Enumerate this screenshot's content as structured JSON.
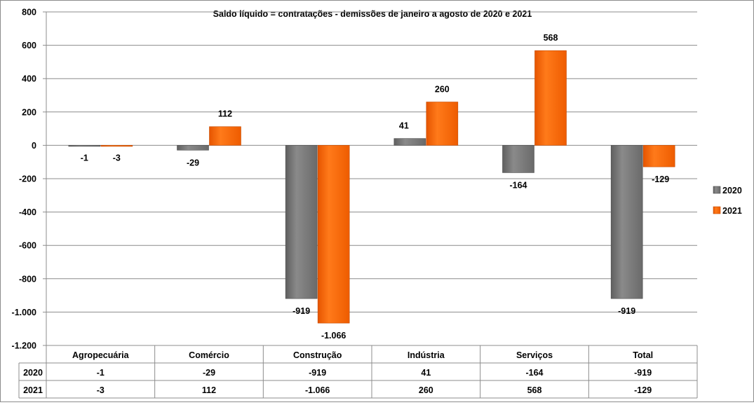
{
  "chart_data": {
    "type": "bar",
    "title": "Saldo líquido = contratações - demissões de janeiro a agosto  de 2020 e 2021",
    "categories": [
      "Agropecuária",
      "Comércio",
      "Construção",
      "Indústria",
      "Serviços",
      "Total"
    ],
    "series": [
      {
        "name": "2020",
        "values": [
          -1,
          -29,
          -919,
          41,
          -164,
          -919
        ],
        "labels": [
          "-1",
          "-29",
          "-919",
          "41",
          "-164",
          "-919"
        ],
        "color": "#7f7f7f"
      },
      {
        "name": "2021",
        "values": [
          -3,
          112,
          -1066,
          260,
          568,
          -129
        ],
        "labels": [
          "-3",
          "112",
          "-1.066",
          "260",
          "568",
          "-129"
        ],
        "color": "#ff6a00"
      }
    ],
    "ylim": [
      -1200,
      800
    ],
    "yticks": [
      800,
      600,
      400,
      200,
      0,
      -200,
      -400,
      -600,
      -800,
      -1000,
      -1200
    ],
    "ytick_labels": [
      "800",
      "600",
      "400",
      "200",
      "0",
      "-200",
      "-400",
      "-600",
      "-800",
      "-1.000",
      "-1.200"
    ],
    "grid": true,
    "legend": "right",
    "data_table": true
  }
}
